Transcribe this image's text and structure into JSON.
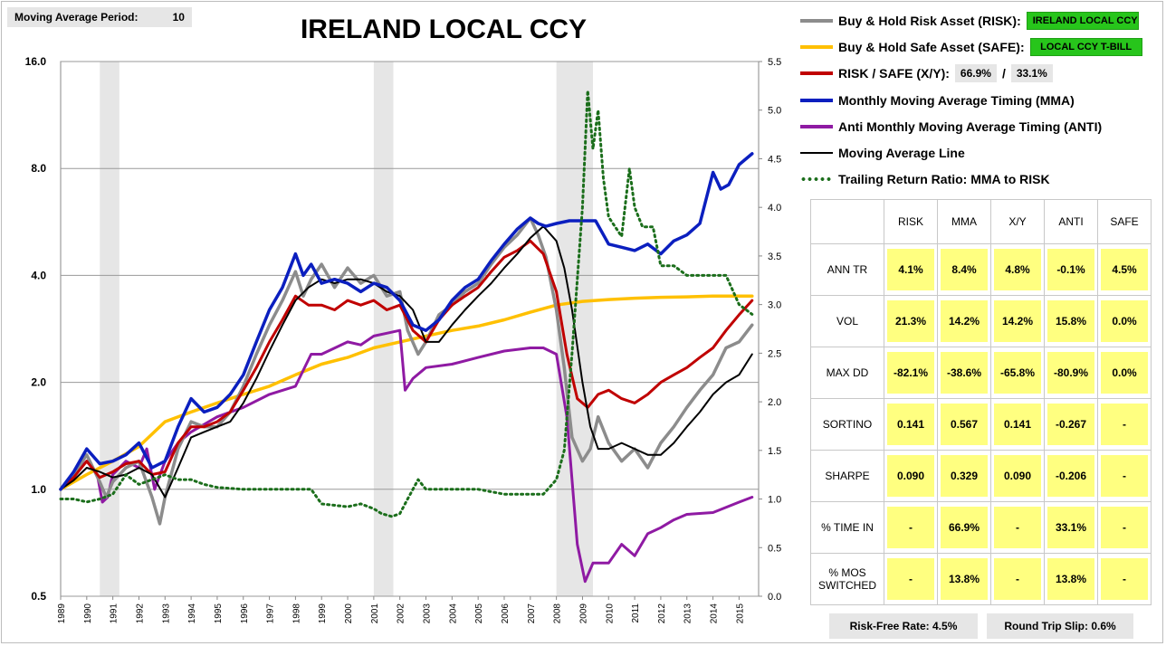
{
  "header": {
    "ma_period_label": "Moving Average Period:",
    "ma_period_value": "10",
    "title": "IRELAND LOCAL CCY"
  },
  "legend": {
    "risk_label": "Buy & Hold Risk Asset (RISK):",
    "risk_tag": "IRELAND LOCAL CCY",
    "safe_label": "Buy & Hold Safe Asset (SAFE):",
    "safe_tag": "LOCAL CCY T-BILL",
    "xy_label": "RISK / SAFE (X/Y):",
    "xy_risk_pct": "66.9%",
    "xy_slash": "/",
    "xy_safe_pct": "33.1%",
    "mma_label": "Monthly Moving Average Timing (MMA)",
    "anti_label": "Anti Monthly Moving Average Timing (ANTI)",
    "maline_label": "Moving Average Line",
    "ratio_label": "Trailing Return Ratio: MMA to RISK"
  },
  "colors": {
    "risk": "#8c8c8c",
    "safe": "#ffc000",
    "xy": "#c00000",
    "mma": "#0b1fbf",
    "anti": "#8f1aa3",
    "maline": "#000000",
    "ratio": "#1b6e1b",
    "recession": "#e6e6e6",
    "tag": "#27c51b",
    "cell": "#ffff80"
  },
  "stats": {
    "columns": [
      "",
      "RISK",
      "MMA",
      "X/Y",
      "ANTI",
      "SAFE"
    ],
    "rows": [
      {
        "label": "ANN TR",
        "values": [
          "4.1%",
          "8.4%",
          "4.8%",
          "-0.1%",
          "4.5%"
        ]
      },
      {
        "label": "VOL",
        "values": [
          "21.3%",
          "14.2%",
          "14.2%",
          "15.8%",
          "0.0%"
        ]
      },
      {
        "label": "MAX DD",
        "values": [
          "-82.1%",
          "-38.6%",
          "-65.8%",
          "-80.9%",
          "0.0%"
        ]
      },
      {
        "label": "SORTINO",
        "values": [
          "0.141",
          "0.567",
          "0.141",
          "-0.267",
          "-"
        ]
      },
      {
        "label": "SHARPE",
        "values": [
          "0.090",
          "0.329",
          "0.090",
          "-0.206",
          "-"
        ]
      },
      {
        "label": "% TIME IN",
        "values": [
          "-",
          "66.9%",
          "-",
          "33.1%",
          "-"
        ]
      },
      {
        "label": "% MOS SWITCHED",
        "values": [
          "-",
          "13.8%",
          "-",
          "13.8%",
          "-"
        ]
      }
    ]
  },
  "footer": {
    "risk_free": "Risk-Free Rate:  4.5%",
    "slip": "Round Trip Slip:  0.6%"
  },
  "chart_data": {
    "type": "line",
    "title": "IRELAND LOCAL CCY",
    "y_scale": "log2",
    "ylim": [
      0.5,
      16
    ],
    "y_ticks": [
      "0.5",
      "1.0",
      "2.0",
      "4.0",
      "8.0",
      "16.0"
    ],
    "y2lim": [
      0,
      5.5
    ],
    "y2_ticks": [
      "0.0",
      "0.5",
      "1.0",
      "1.5",
      "2.0",
      "2.5",
      "3.0",
      "3.5",
      "4.0",
      "4.5",
      "5.0",
      "5.5"
    ],
    "x_ticks": [
      "1989",
      "1990",
      "1991",
      "1992",
      "1993",
      "1994",
      "1995",
      "1996",
      "1997",
      "1998",
      "1999",
      "2000",
      "2001",
      "2002",
      "2003",
      "2004",
      "2005",
      "2006",
      "2007",
      "2008",
      "2009",
      "2010",
      "2011",
      "2012",
      "2013",
      "2014",
      "2015"
    ],
    "xlim": [
      1989.0,
      2015.75
    ],
    "grid": true,
    "recession_bands": [
      [
        1990.5,
        1991.25
      ],
      [
        2001.0,
        2001.75
      ],
      [
        2008.0,
        2009.4
      ]
    ],
    "series": [
      {
        "name": "Buy & Hold Risk Asset (RISK)",
        "key": "risk",
        "axis": "left",
        "x": [
          1989,
          1989.5,
          1990,
          1990.5,
          1990.75,
          1991,
          1991.5,
          1992,
          1992.5,
          1992.8,
          1993,
          1993.5,
          1994,
          1994.5,
          1995,
          1995.5,
          1996,
          1996.5,
          1997,
          1997.5,
          1998,
          1998.3,
          1998.6,
          1999,
          1999.5,
          2000,
          2000.5,
          2001,
          2001.5,
          2002,
          2002.3,
          2002.7,
          2003,
          2003.5,
          2004,
          2004.5,
          2005,
          2005.5,
          2006,
          2006.5,
          2007,
          2007.3,
          2007.6,
          2008,
          2008.3,
          2008.6,
          2009,
          2009.3,
          2009.6,
          2010,
          2010.5,
          2011,
          2011.5,
          2012,
          2012.5,
          2013,
          2013.5,
          2014,
          2014.5,
          2015,
          2015.5
        ],
        "y": [
          1.0,
          1.1,
          1.25,
          1.05,
          0.95,
          1.05,
          1.15,
          1.2,
          0.95,
          0.8,
          0.95,
          1.3,
          1.55,
          1.5,
          1.5,
          1.65,
          1.95,
          2.4,
          2.9,
          3.4,
          4.1,
          3.5,
          3.9,
          4.3,
          3.7,
          4.2,
          3.8,
          4.0,
          3.5,
          3.6,
          2.8,
          2.4,
          2.6,
          3.1,
          3.3,
          3.6,
          3.8,
          4.3,
          4.8,
          5.2,
          5.8,
          5.2,
          4.5,
          3.2,
          2.2,
          1.4,
          1.2,
          1.3,
          1.6,
          1.35,
          1.2,
          1.3,
          1.15,
          1.35,
          1.5,
          1.7,
          1.9,
          2.1,
          2.5,
          2.6,
          2.9
        ]
      },
      {
        "name": "Buy & Hold Safe Asset (SAFE)",
        "key": "safe",
        "axis": "left",
        "x": [
          1989,
          1990,
          1991,
          1992,
          1993,
          1994,
          1995,
          1996,
          1997,
          1998,
          1999,
          2000,
          2001,
          2002,
          2003,
          2004,
          2005,
          2006,
          2007,
          2008,
          2009,
          2010,
          2011,
          2012,
          2013,
          2014,
          2015.5
        ],
        "y": [
          1.0,
          1.1,
          1.2,
          1.32,
          1.55,
          1.65,
          1.75,
          1.85,
          1.95,
          2.1,
          2.25,
          2.35,
          2.5,
          2.6,
          2.7,
          2.8,
          2.88,
          3.0,
          3.15,
          3.3,
          3.38,
          3.42,
          3.45,
          3.47,
          3.48,
          3.5,
          3.5
        ]
      },
      {
        "name": "RISK / SAFE (X/Y)",
        "key": "xy",
        "axis": "left",
        "x": [
          1989,
          1989.5,
          1990,
          1990.5,
          1991,
          1991.5,
          1992,
          1992.5,
          1993,
          1993.5,
          1994,
          1994.5,
          1995,
          1995.5,
          1996,
          1996.5,
          1997,
          1997.5,
          1998,
          1998.5,
          1999,
          1999.5,
          2000,
          2000.5,
          2001,
          2001.5,
          2002,
          2002.5,
          2003,
          2003.5,
          2004,
          2004.5,
          2005,
          2005.5,
          2006,
          2006.5,
          2007,
          2007.5,
          2008,
          2008.4,
          2008.8,
          2009.2,
          2009.6,
          2010,
          2010.5,
          2011,
          2011.5,
          2012,
          2012.5,
          2013,
          2013.5,
          2014,
          2014.5,
          2015,
          2015.5
        ],
        "y": [
          1.0,
          1.08,
          1.2,
          1.08,
          1.12,
          1.18,
          1.2,
          1.1,
          1.12,
          1.35,
          1.5,
          1.5,
          1.55,
          1.65,
          1.9,
          2.2,
          2.6,
          3.0,
          3.5,
          3.3,
          3.3,
          3.2,
          3.4,
          3.3,
          3.4,
          3.2,
          3.3,
          2.8,
          2.6,
          3.0,
          3.3,
          3.5,
          3.7,
          4.1,
          4.5,
          4.7,
          5.0,
          4.6,
          3.6,
          2.4,
          1.8,
          1.7,
          1.85,
          1.9,
          1.8,
          1.75,
          1.85,
          2.0,
          2.1,
          2.2,
          2.35,
          2.5,
          2.8,
          3.1,
          3.4
        ]
      },
      {
        "name": "Monthly Moving Average Timing (MMA)",
        "key": "mma",
        "axis": "left",
        "x": [
          1989,
          1989.5,
          1990,
          1990.5,
          1991,
          1991.5,
          1992,
          1992.5,
          1993,
          1993.5,
          1994,
          1994.5,
          1995,
          1995.5,
          1996,
          1996.5,
          1997,
          1997.5,
          1998,
          1998.3,
          1998.6,
          1999,
          1999.5,
          2000,
          2000.5,
          2001,
          2001.5,
          2002,
          2002.5,
          2003,
          2003.5,
          2004,
          2004.5,
          2005,
          2005.5,
          2006,
          2006.5,
          2007,
          2007.3,
          2007.6,
          2008,
          2008.5,
          2009,
          2009.5,
          2010,
          2010.5,
          2011,
          2011.5,
          2012,
          2012.5,
          2013,
          2013.5,
          2014,
          2014.3,
          2014.6,
          2015,
          2015.5
        ],
        "y": [
          1.0,
          1.12,
          1.3,
          1.18,
          1.2,
          1.25,
          1.35,
          1.15,
          1.2,
          1.5,
          1.8,
          1.65,
          1.7,
          1.85,
          2.1,
          2.6,
          3.2,
          3.7,
          4.6,
          4.0,
          4.3,
          3.8,
          3.9,
          3.8,
          3.6,
          3.8,
          3.7,
          3.4,
          2.9,
          2.8,
          3.0,
          3.4,
          3.7,
          3.9,
          4.4,
          4.9,
          5.4,
          5.8,
          5.6,
          5.5,
          5.6,
          5.7,
          5.7,
          5.7,
          4.9,
          4.8,
          4.7,
          4.9,
          4.6,
          5.0,
          5.2,
          5.6,
          7.8,
          7.0,
          7.2,
          8.2,
          8.8
        ]
      },
      {
        "name": "Anti Monthly Moving Average Timing (ANTI)",
        "key": "anti",
        "axis": "left",
        "x": [
          1989,
          1989.5,
          1990,
          1990.4,
          1990.6,
          1990.8,
          1991,
          1991.5,
          1992,
          1992.3,
          1992.6,
          1993,
          1993.5,
          1994,
          1995,
          1996,
          1997,
          1998,
          1998.6,
          1999,
          2000,
          2000.5,
          2001,
          2001.5,
          2002,
          2002.2,
          2002.5,
          2003,
          2004,
          2005,
          2006,
          2007,
          2007.5,
          2008,
          2008.4,
          2008.8,
          2009.1,
          2009.4,
          2009.7,
          2010,
          2010.5,
          2011,
          2011.5,
          2012,
          2012.5,
          2013,
          2014,
          2015,
          2015.5
        ],
        "y": [
          1.0,
          1.1,
          1.2,
          1.1,
          0.92,
          0.95,
          1.1,
          1.2,
          1.15,
          1.3,
          1.0,
          1.2,
          1.35,
          1.45,
          1.6,
          1.7,
          1.85,
          1.95,
          2.4,
          2.4,
          2.6,
          2.55,
          2.7,
          2.75,
          2.8,
          1.9,
          2.05,
          2.2,
          2.25,
          2.35,
          2.45,
          2.5,
          2.5,
          2.4,
          1.6,
          0.7,
          0.55,
          0.62,
          0.62,
          0.62,
          0.7,
          0.65,
          0.75,
          0.78,
          0.82,
          0.85,
          0.86,
          0.92,
          0.95
        ]
      },
      {
        "name": "Moving Average Line",
        "key": "maline",
        "axis": "left",
        "x": [
          1989,
          1989.5,
          1990,
          1990.5,
          1991,
          1991.5,
          1992,
          1992.5,
          1993,
          1993.5,
          1994,
          1994.5,
          1995,
          1995.5,
          1996,
          1996.5,
          1997,
          1997.5,
          1998,
          1998.5,
          1999,
          1999.5,
          2000,
          2000.5,
          2001,
          2001.5,
          2002,
          2002.5,
          2003,
          2003.5,
          2004,
          2004.5,
          2005,
          2005.5,
          2006,
          2006.5,
          2007,
          2007.5,
          2008,
          2008.3,
          2008.6,
          2009,
          2009.3,
          2009.6,
          2010,
          2010.5,
          2011,
          2011.5,
          2012,
          2012.5,
          2013,
          2013.5,
          2014,
          2014.5,
          2015,
          2015.5
        ],
        "y": [
          1.0,
          1.06,
          1.15,
          1.12,
          1.08,
          1.1,
          1.15,
          1.1,
          0.95,
          1.15,
          1.4,
          1.45,
          1.5,
          1.55,
          1.75,
          2.05,
          2.45,
          2.9,
          3.4,
          3.7,
          3.9,
          3.8,
          3.9,
          3.9,
          3.8,
          3.6,
          3.5,
          3.2,
          2.6,
          2.6,
          2.9,
          3.2,
          3.5,
          3.8,
          4.2,
          4.6,
          5.1,
          5.5,
          5.0,
          4.2,
          3.2,
          2.0,
          1.5,
          1.3,
          1.3,
          1.35,
          1.3,
          1.25,
          1.25,
          1.35,
          1.5,
          1.65,
          1.85,
          2.0,
          2.1,
          2.4
        ]
      },
      {
        "name": "Trailing Return Ratio: MMA to RISK",
        "key": "ratio",
        "axis": "right",
        "x": [
          1989,
          1989.5,
          1990,
          1990.5,
          1991,
          1991.5,
          1992,
          1992.5,
          1993,
          1993.5,
          1994,
          1994.5,
          1995,
          1996,
          1997,
          1998,
          1998.6,
          1999,
          2000,
          2000.5,
          2001,
          2001.3,
          2001.7,
          2002,
          2002.3,
          2002.7,
          2003,
          2003.5,
          2004,
          2005,
          2006,
          2007,
          2007.5,
          2008,
          2008.3,
          2008.6,
          2009,
          2009.2,
          2009.4,
          2009.6,
          2009.8,
          2010,
          2010.5,
          2010.8,
          2011,
          2011.3,
          2011.7,
          2012,
          2012.5,
          2013,
          2014,
          2014.5,
          2015,
          2015.5
        ],
        "y": [
          1.0,
          1.0,
          0.97,
          1.0,
          1.05,
          1.25,
          1.15,
          1.2,
          1.25,
          1.2,
          1.2,
          1.15,
          1.12,
          1.1,
          1.1,
          1.1,
          1.1,
          0.95,
          0.92,
          0.95,
          0.9,
          0.85,
          0.82,
          0.85,
          1.0,
          1.2,
          1.1,
          1.1,
          1.1,
          1.1,
          1.05,
          1.05,
          1.05,
          1.2,
          1.5,
          2.5,
          4.0,
          5.2,
          4.6,
          5.0,
          4.3,
          3.9,
          3.7,
          4.4,
          4.0,
          3.8,
          3.8,
          3.4,
          3.4,
          3.3,
          3.3,
          3.3,
          3.0,
          2.9
        ]
      }
    ]
  }
}
